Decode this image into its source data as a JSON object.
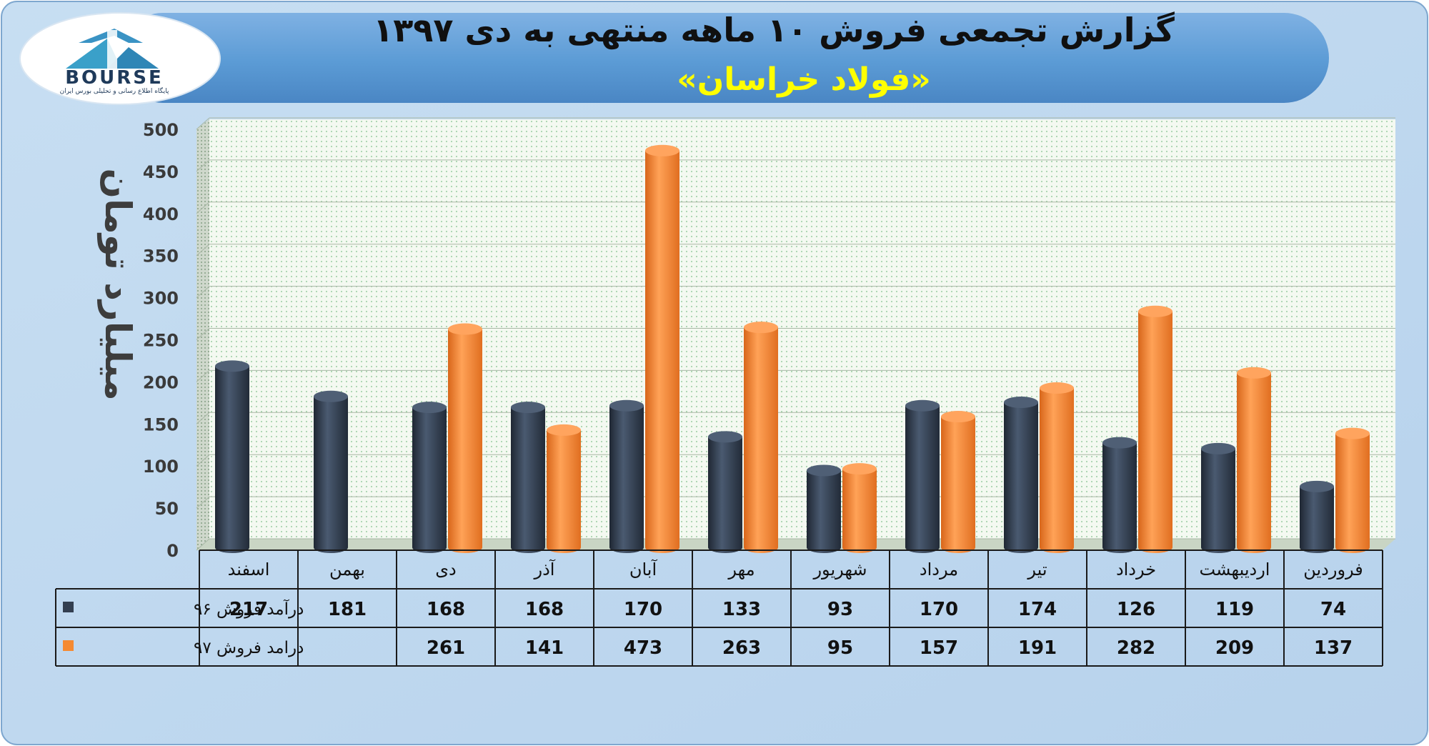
{
  "header": {
    "title": "گزارش تجمعی فروش ۱۰ ماهه منتهی به دی ۱۳۹۷",
    "subtitle": "«فولاد خراسان»"
  },
  "logo": {
    "text": "BOURSE",
    "caption": "پایگاه اطلاع رسانی و تحلیلی بورس ایران"
  },
  "colors": {
    "background": "#bcd6ee",
    "banner": "#5b9bd5",
    "series_96": "#333f50",
    "series_97": "#f58a32",
    "plot_bg": "#f2f7ee"
  },
  "chart_data": {
    "type": "bar",
    "ylabel": "میلیارد تومان",
    "ylim": [
      0,
      500
    ],
    "yticks": [
      0,
      50,
      100,
      150,
      200,
      250,
      300,
      350,
      400,
      450,
      500
    ],
    "categories": [
      "فروردین",
      "اردیبهشت",
      "خرداد",
      "تیر",
      "مرداد",
      "شهریور",
      "مهر",
      "آبان",
      "آذر",
      "دی",
      "بهمن",
      "اسفند"
    ],
    "series": [
      {
        "name": "درآمد فروش ۹۶",
        "values": [
          74,
          119,
          126,
          174,
          170,
          93,
          133,
          170,
          168,
          168,
          181,
          217
        ]
      },
      {
        "name": "درامد فروش ۹۷",
        "values": [
          137,
          209,
          282,
          191,
          157,
          95,
          263,
          473,
          141,
          261,
          null,
          null
        ]
      }
    ],
    "legend": "data-table"
  }
}
